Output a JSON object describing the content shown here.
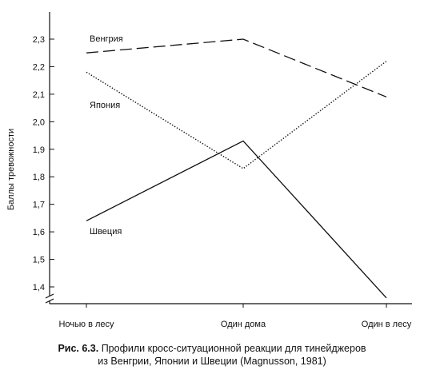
{
  "chart_data": {
    "type": "line",
    "title": "",
    "xlabel": "",
    "ylabel": "Баллы тревожности",
    "categories": [
      "Ночью в лесу",
      "Один дома",
      "Один в лесу"
    ],
    "ylim": [
      1.35,
      2.38
    ],
    "yticks": [
      "1,4",
      "1,5",
      "1,6",
      "1,7",
      "1,8",
      "1,9",
      "2,0",
      "2,1",
      "2,2",
      "2,3"
    ],
    "ytick_values": [
      1.4,
      1.5,
      1.6,
      1.7,
      1.8,
      1.9,
      2.0,
      2.1,
      2.2,
      2.3
    ],
    "grid": false,
    "legend": "inline labels",
    "series": [
      {
        "name": "Венгрия",
        "values": [
          2.25,
          2.3,
          2.09
        ],
        "style": "dashed",
        "color": "#111111"
      },
      {
        "name": "Япония",
        "values": [
          2.18,
          1.83,
          2.22
        ],
        "style": "dotted",
        "color": "#111111"
      },
      {
        "name": "Швеция",
        "values": [
          1.64,
          1.93,
          1.36
        ],
        "style": "solid",
        "color": "#111111"
      }
    ]
  },
  "caption": {
    "label": "Рис. 6.3.",
    "line1": " Профили кросс-ситуационной реакции для тинейджеров",
    "line2": "из Венгрии, Японии и Швеции (Magnusson, 1981)"
  }
}
